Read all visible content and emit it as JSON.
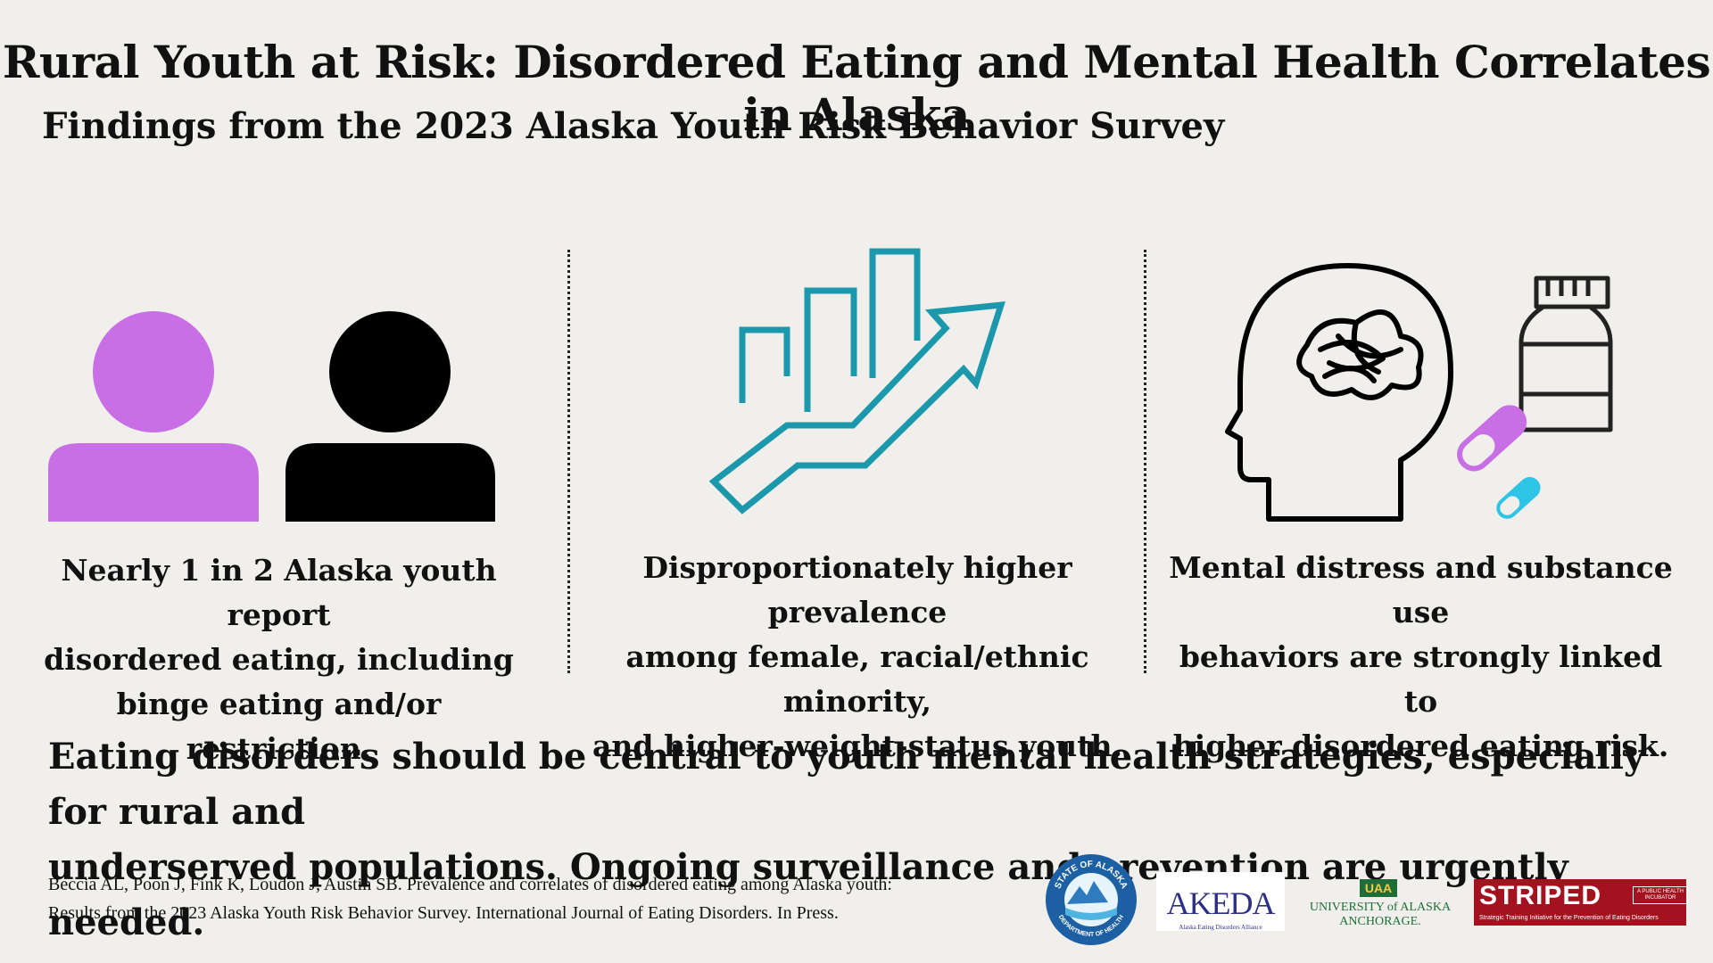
{
  "header": {
    "title": "Rural Youth at Risk: Disordered Eating and Mental Health Correlates in Alaska",
    "subtitle": "Findings from the 2023 Alaska Youth Risk Behavior Survey"
  },
  "findings": [
    {
      "icon": "two-people-icon",
      "lines": [
        "Nearly 1 in 2 Alaska youth report",
        "disordered eating, including",
        "binge eating and/or restriction."
      ]
    },
    {
      "icon": "rising-bar-chart-arrow-icon",
      "lines": [
        "Disproportionately higher prevalence",
        "among female, racial/ethnic minority,",
        "and higher-weight-status youth."
      ]
    },
    {
      "icon": "head-brain-pills-icon",
      "lines": [
        "Mental distress and substance use",
        "behaviors are strongly linked to",
        "higher disordered eating risk."
      ]
    }
  ],
  "conclusion": {
    "line1": "Eating disorders should be central to youth mental health strategies, especially for rural and",
    "line2": "underserved populations. Ongoing surveillance and prevention are urgently needed."
  },
  "citation": {
    "line1": "Beccia AL, Poon J, Fink K, Loudon J, Austin SB. Prevalence and correlates of disordered eating among Alaska youth:",
    "line2": "Results from the 2023 Alaska Youth Risk Behavior Survey. International Journal of Eating Disorders. In Press."
  },
  "logos": {
    "alaska_doh": {
      "top": "STATE OF ALASKA",
      "bottom": "DEPARTMENT OF HEALTH"
    },
    "akeda": {
      "name": "AKEDA",
      "tagline": "Alaska Eating Disorders Alliance"
    },
    "uaa": {
      "badge": "UAA",
      "line1": "UNIVERSITY of ALASKA",
      "line2": "ANCHORAGE."
    },
    "striped": {
      "name": "STRIPED",
      "side": "A PUBLIC HEALTH INCUBATOR",
      "tagline": "Strategic Training Initiative for the Prevention of Eating Disorders"
    }
  },
  "colors": {
    "background": "#f0efeb",
    "purple": "#c86fe6",
    "teal": "#1b98ab",
    "cyan": "#2ec4e6",
    "striped_red": "#a3121e"
  }
}
